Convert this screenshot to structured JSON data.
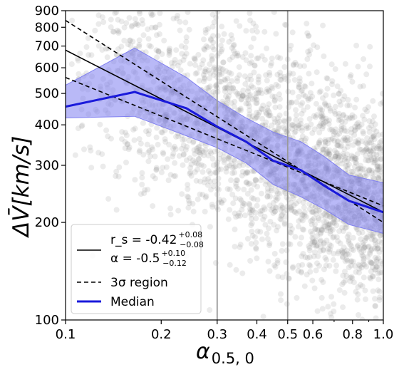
{
  "chart_data": {
    "type": "line",
    "x_scale": "log",
    "y_scale": "log",
    "xlim": [
      0.1,
      1.0
    ],
    "ylim": [
      100,
      900
    ],
    "xlabel": "α_{0.5,0}",
    "ylabel": "ΔV̄[km/s]",
    "x_ticks": [
      {
        "value": 0.1,
        "label": "0.1"
      },
      {
        "value": 0.2,
        "label": "0.2"
      },
      {
        "value": 0.3,
        "label": "0.3"
      },
      {
        "value": 0.4,
        "label": "0.4"
      },
      {
        "value": 0.5,
        "label": "0.5"
      },
      {
        "value": 0.6,
        "label": "0.6"
      },
      {
        "value": 0.8,
        "label": "0.8"
      },
      {
        "value": 1.0,
        "label": "1.0"
      }
    ],
    "y_ticks": [
      {
        "value": 100,
        "label": "100"
      },
      {
        "value": 200,
        "label": "200"
      },
      {
        "value": 300,
        "label": "300"
      },
      {
        "value": 400,
        "label": "400"
      },
      {
        "value": 500,
        "label": "500"
      },
      {
        "value": 600,
        "label": "600"
      },
      {
        "value": 700,
        "label": "700"
      },
      {
        "value": 800,
        "label": "800"
      },
      {
        "value": 900,
        "label": "900"
      }
    ],
    "vertical_lines": [
      0.3,
      0.5
    ],
    "fit_line": {
      "x": [
        0.1,
        1.0
      ],
      "y": [
        680,
        215
      ]
    },
    "sigma_upper": {
      "x": [
        0.1,
        1.0
      ],
      "y": [
        840,
        200
      ]
    },
    "sigma_lower": {
      "x": [
        0.1,
        1.0
      ],
      "y": [
        560,
        225
      ]
    },
    "median": {
      "x": [
        0.1,
        0.165,
        0.24,
        0.3,
        0.37,
        0.45,
        0.55,
        0.65,
        0.78,
        1.0
      ],
      "y": [
        455,
        505,
        450,
        395,
        355,
        310,
        290,
        260,
        233,
        215
      ]
    },
    "band_upper": [
      530,
      690,
      560,
      475,
      420,
      380,
      355,
      320,
      280,
      265
    ],
    "band_lower": [
      420,
      425,
      370,
      340,
      305,
      262,
      240,
      220,
      197,
      185
    ],
    "scatter_note_color": "#808080",
    "colors": {
      "median": "#1a1adb",
      "band": "#8080f0",
      "fit": "#000000",
      "vline": "#999999",
      "scatter": "#808080"
    },
    "legend": {
      "placement": "lower-left",
      "entries": [
        {
          "style": "solid",
          "line1": "r_s = -0.42",
          "line1_sup": "+0.08",
          "line1_sub": "−0.08",
          "line2": "α = -0.5",
          "line2_sup": "+0.10",
          "line2_sub": "−0.12"
        },
        {
          "style": "dashed",
          "label": "3σ region"
        },
        {
          "style": "median",
          "label": "Median"
        }
      ]
    }
  }
}
